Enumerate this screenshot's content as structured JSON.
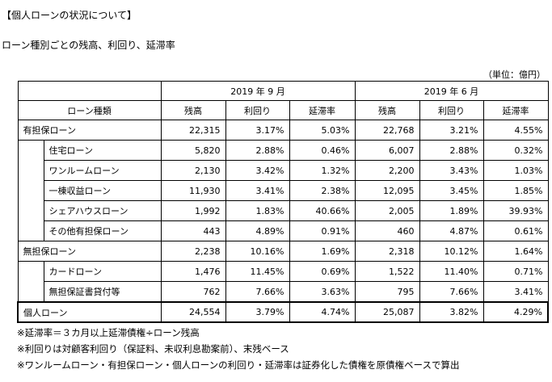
{
  "title": "【個人ローンの状況について】",
  "subtitle": "ローン種別ごとの残高、利回り、延滞率",
  "unit": "（単位：億円）",
  "table": {
    "period_headers": [
      "2019 年 9 月",
      "2019 年 6 月"
    ],
    "type_header": "ローン種類",
    "columns": [
      "残高",
      "利回り",
      "延滞率",
      "残高",
      "利回り",
      "延滞率"
    ],
    "secured": {
      "label": "有担保ローン",
      "values": [
        "22,315",
        "3.17%",
        "5.03%",
        "22,768",
        "3.21%",
        "4.55%"
      ],
      "children": [
        {
          "label": "住宅ローン",
          "values": [
            "5,820",
            "2.88%",
            "0.46%",
            "6,007",
            "2.88%",
            "0.32%"
          ]
        },
        {
          "label": "ワンルームローン",
          "values": [
            "2,130",
            "3.42%",
            "1.32%",
            "2,200",
            "3.43%",
            "1.03%"
          ]
        },
        {
          "label": "一棟収益ローン",
          "values": [
            "11,930",
            "3.41%",
            "2.38%",
            "12,095",
            "3.45%",
            "1.85%"
          ]
        },
        {
          "label": "シェアハウスローン",
          "values": [
            "1,992",
            "1.83%",
            "40.66%",
            "2,005",
            "1.89%",
            "39.93%"
          ]
        },
        {
          "label": "その他有担保ローン",
          "values": [
            "443",
            "4.89%",
            "0.91%",
            "460",
            "4.87%",
            "0.61%"
          ]
        }
      ]
    },
    "unsecured": {
      "label": "無担保ローン",
      "values": [
        "2,238",
        "10.16%",
        "1.69%",
        "2,318",
        "10.12%",
        "1.64%"
      ],
      "children": [
        {
          "label": "カードローン",
          "values": [
            "1,476",
            "11.45%",
            "0.69%",
            "1,522",
            "11.40%",
            "0.71%"
          ]
        },
        {
          "label": "無担保証書貸付等",
          "values": [
            "762",
            "7.66%",
            "3.63%",
            "795",
            "7.66%",
            "3.41%"
          ]
        }
      ]
    },
    "total": {
      "label": "個人ローン",
      "values": [
        "24,554",
        "3.79%",
        "4.74%",
        "25,087",
        "3.82%",
        "4.29%"
      ]
    }
  },
  "notes": [
    "※延滞率＝３カ月以上延滞債権÷ローン残高",
    "※利回りは対顧客利回り（保証料、未収利息勘案前）、末残ベース",
    "※ワンルームローン・有担保ローン・個人ローンの利回り・延滞率は証券化した債権を原債権ベースで算出"
  ]
}
